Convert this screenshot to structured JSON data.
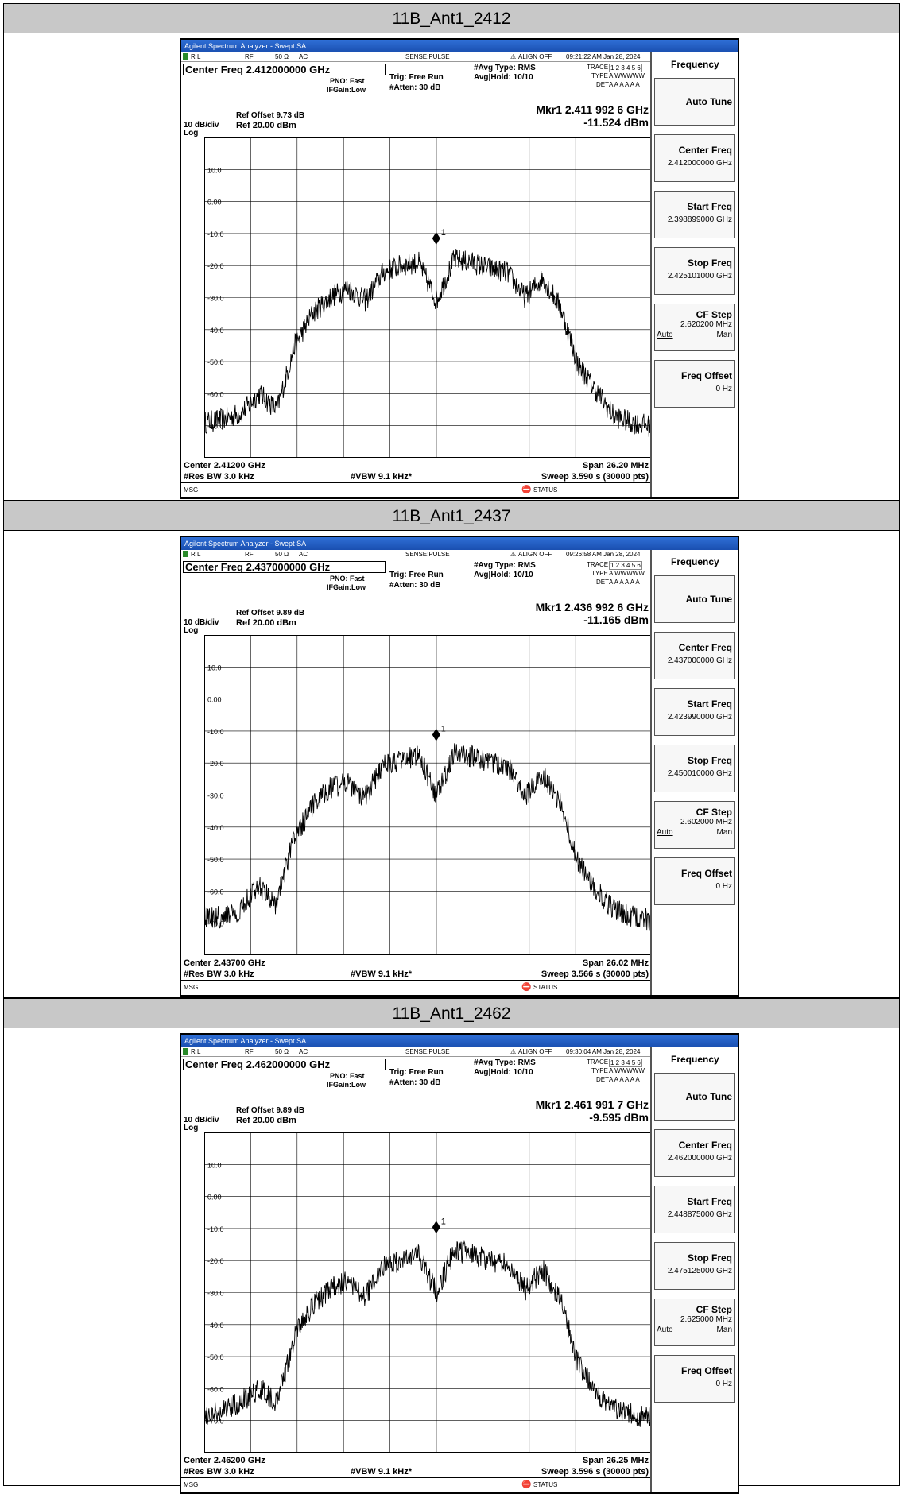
{
  "panels": [
    {
      "title": "11B_Ant1_2412",
      "app_title": "Agilent Spectrum Analyzer - Swept SA",
      "status": {
        "rl": "R L",
        "rf": "RF",
        "imp": "50 Ω",
        "ac": "AC",
        "sense": "SENSE:PULSE",
        "align": "ALIGN OFF",
        "time": "09:21:22 AM Jan 28, 2024"
      },
      "center_freq_box": "Center Freq 2.412000000 GHz",
      "pno": "PNO: Fast",
      "ifgain": "IFGain:Low",
      "trig": "Trig: Free Run",
      "atten": "#Atten: 30 dB",
      "avg_type": "#Avg Type: RMS",
      "avg_hold": "Avg|Hold: 10/10",
      "trace_lbl": "TRACE",
      "trace_nums": "1 2 3 4 5 6",
      "type_lbl": "TYPE",
      "type_vals": "A WWWWW",
      "det_lbl": "DET",
      "det_vals": "A A A A A A",
      "ref_offset": "Ref Offset 9.73 dB",
      "scale": "10 dB/div",
      "ref_level": "Ref 20.00 dBm",
      "log": "Log",
      "marker_freq": "Mkr1 2.411 992 6 GHz",
      "marker_amp": "-11.524 dBm",
      "marker_label": "1",
      "center_bottom": "Center 2.41200 GHz",
      "span": "Span 26.20 MHz",
      "res_bw": "#Res BW 3.0 kHz",
      "vbw": "#VBW 9.1 kHz*",
      "sweep": "Sweep  3.590 s (30000 pts)",
      "msg": "MSG",
      "status_lbl": "STATUS",
      "softkeys": {
        "menu": "Frequency",
        "auto_tune": "Auto Tune",
        "center_freq": "Center Freq",
        "center_val": "2.412000000 GHz",
        "start_freq": "Start Freq",
        "start_val": "2.398899000 GHz",
        "stop_freq": "Stop Freq",
        "stop_val": "2.425101000 GHz",
        "cf_step": "CF Step",
        "cf_val": "2.620200 MHz",
        "auto": "Auto",
        "man": "Man",
        "freq_offset": "Freq Offset",
        "offset_val": "0 Hz"
      }
    },
    {
      "title": "11B_Ant1_2437",
      "app_title": "Agilent Spectrum Analyzer - Swept SA",
      "status": {
        "rl": "R L",
        "rf": "RF",
        "imp": "50 Ω",
        "ac": "AC",
        "sense": "SENSE:PULSE",
        "align": "ALIGN OFF",
        "time": "09:26:58 AM Jan 28, 2024"
      },
      "center_freq_box": "Center Freq 2.437000000 GHz",
      "pno": "PNO: Fast",
      "ifgain": "IFGain:Low",
      "trig": "Trig: Free Run",
      "atten": "#Atten: 30 dB",
      "avg_type": "#Avg Type: RMS",
      "avg_hold": "Avg|Hold: 10/10",
      "trace_lbl": "TRACE",
      "trace_nums": "1 2 3 4 5 6",
      "type_lbl": "TYPE",
      "type_vals": "A WWWWW",
      "det_lbl": "DET",
      "det_vals": "A A A A A A",
      "ref_offset": "Ref Offset 9.89 dB",
      "scale": "10 dB/div",
      "ref_level": "Ref 20.00 dBm",
      "log": "Log",
      "marker_freq": "Mkr1 2.436 992 6 GHz",
      "marker_amp": "-11.165 dBm",
      "marker_label": "1",
      "center_bottom": "Center 2.43700 GHz",
      "span": "Span 26.02 MHz",
      "res_bw": "#Res BW 3.0 kHz",
      "vbw": "#VBW 9.1 kHz*",
      "sweep": "Sweep  3.566 s (30000 pts)",
      "msg": "MSG",
      "status_lbl": "STATUS",
      "softkeys": {
        "menu": "Frequency",
        "auto_tune": "Auto Tune",
        "center_freq": "Center Freq",
        "center_val": "2.437000000 GHz",
        "start_freq": "Start Freq",
        "start_val": "2.423990000 GHz",
        "stop_freq": "Stop Freq",
        "stop_val": "2.450010000 GHz",
        "cf_step": "CF Step",
        "cf_val": "2.602000 MHz",
        "auto": "Auto",
        "man": "Man",
        "freq_offset": "Freq Offset",
        "offset_val": "0 Hz"
      }
    },
    {
      "title": "11B_Ant1_2462",
      "app_title": "Agilent Spectrum Analyzer - Swept SA",
      "status": {
        "rl": "R L",
        "rf": "RF",
        "imp": "50 Ω",
        "ac": "AC",
        "sense": "SENSE:PULSE",
        "align": "ALIGN OFF",
        "time": "09:30:04 AM Jan 28, 2024"
      },
      "center_freq_box": "Center Freq 2.462000000 GHz",
      "pno": "PNO: Fast",
      "ifgain": "IFGain:Low",
      "trig": "Trig: Free Run",
      "atten": "#Atten: 30 dB",
      "avg_type": "#Avg Type: RMS",
      "avg_hold": "Avg|Hold: 10/10",
      "trace_lbl": "TRACE",
      "trace_nums": "1 2 3 4 5 6",
      "type_lbl": "TYPE",
      "type_vals": "A WWWWW",
      "det_lbl": "DET",
      "det_vals": "A A A A A A",
      "ref_offset": "Ref Offset 9.89 dB",
      "scale": "10 dB/div",
      "ref_level": "Ref 20.00 dBm",
      "log": "Log",
      "marker_freq": "Mkr1 2.461 991 7 GHz",
      "marker_amp": "-9.595 dBm",
      "marker_label": "1",
      "center_bottom": "Center 2.46200 GHz",
      "span": "Span 26.25 MHz",
      "res_bw": "#Res BW 3.0 kHz",
      "vbw": "#VBW 9.1 kHz*",
      "sweep": "Sweep  3.596 s (30000 pts)",
      "msg": "MSG",
      "status_lbl": "STATUS",
      "softkeys": {
        "menu": "Frequency",
        "auto_tune": "Auto Tune",
        "center_freq": "Center Freq",
        "center_val": "2.462000000 GHz",
        "start_freq": "Start Freq",
        "start_val": "2.448875000 GHz",
        "stop_freq": "Stop Freq",
        "stop_val": "2.475125000 GHz",
        "cf_step": "CF Step",
        "cf_val": "2.625000 MHz",
        "auto": "Auto",
        "man": "Man",
        "freq_offset": "Freq Offset",
        "offset_val": "0 Hz"
      }
    }
  ],
  "chart_data": [
    {
      "type": "line",
      "title": "11B_Ant1_2412",
      "ylim": [
        -80,
        20
      ],
      "y_ticks": [
        "10.0",
        "0.00",
        "-10.0",
        "-20.0",
        "-30.0",
        "-40.0",
        "-50.0",
        "-60.0",
        "-70.0"
      ],
      "x_offset_mhz": [
        -13.1,
        -12,
        -11,
        -10,
        -9,
        -8,
        -7,
        -6,
        -5,
        -4,
        -3,
        -2,
        -1,
        0,
        1,
        2,
        3,
        4,
        5,
        6,
        7,
        8,
        9,
        10,
        11,
        12,
        13.1
      ],
      "y_dbm": [
        -69,
        -68,
        -66,
        -60,
        -65,
        -45,
        -35,
        -30,
        -27,
        -31,
        -22,
        -20,
        -19,
        -31,
        -18,
        -19,
        -21,
        -22,
        -30,
        -24,
        -33,
        -51,
        -59,
        -67,
        -69,
        -70,
        -71
      ],
      "marker": {
        "x_offset_mhz": -0.01,
        "y_dbm": -11.524
      }
    },
    {
      "type": "line",
      "title": "11B_Ant1_2437",
      "ylim": [
        -80,
        20
      ],
      "y_ticks": [
        "10.0",
        "0.00",
        "-10.0",
        "-20.0",
        "-30.0",
        "-40.0",
        "-50.0",
        "-60.0",
        "-70.0"
      ],
      "x_offset_mhz": [
        -13,
        -12,
        -11,
        -10,
        -9,
        -8,
        -7,
        -6,
        -5,
        -4,
        -3,
        -2,
        -1,
        0,
        1,
        2,
        3,
        4,
        5,
        6,
        7,
        8,
        9,
        10,
        11,
        12,
        13
      ],
      "y_dbm": [
        -68,
        -68,
        -66,
        -58,
        -64,
        -44,
        -34,
        -28,
        -26,
        -31,
        -21,
        -19,
        -18,
        -30,
        -17,
        -18,
        -20,
        -21,
        -30,
        -24,
        -33,
        -52,
        -60,
        -66,
        -68,
        -69,
        -70
      ],
      "marker": {
        "x_offset_mhz": -0.01,
        "y_dbm": -11.165
      }
    },
    {
      "type": "line",
      "title": "11B_Ant1_2462",
      "ylim": [
        -80,
        20
      ],
      "y_ticks": [
        "10.0",
        "0.00",
        "-10.0",
        "-20.0",
        "-30.0",
        "-40.0",
        "-50.0",
        "-60.0",
        "-70.0"
      ],
      "x_offset_mhz": [
        -13.1,
        -12,
        -11,
        -10,
        -9,
        -8,
        -7,
        -6,
        -5,
        -4,
        -3,
        -2,
        -1,
        0,
        1,
        2,
        3,
        4,
        5,
        6,
        7,
        8,
        9,
        10,
        11,
        12,
        13.1
      ],
      "y_dbm": [
        -68,
        -67,
        -64,
        -60,
        -64,
        -44,
        -34,
        -29,
        -26,
        -31,
        -22,
        -20,
        -18,
        -30,
        -17,
        -18,
        -20,
        -21,
        -29,
        -23,
        -32,
        -52,
        -61,
        -66,
        -68,
        -69,
        -70
      ],
      "marker": {
        "x_offset_mhz": -0.01,
        "y_dbm": -9.595
      }
    }
  ]
}
